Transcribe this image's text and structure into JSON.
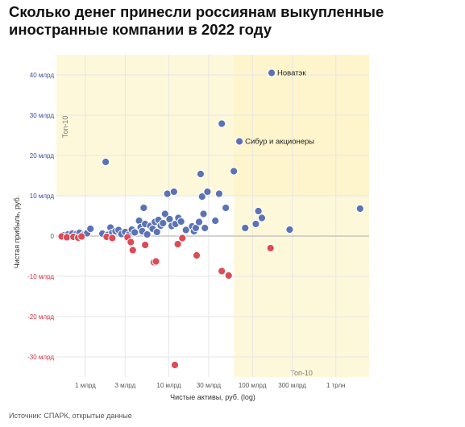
{
  "title": "Сколько денег принесли россиянам выкупленные иностранные компании в 2022 году",
  "source": "Источник: СПАРК, открытые данные",
  "chart_data": {
    "type": "scatter",
    "title": "Сколько денег принесли россиянам выкупленные иностранные компании в 2022 году",
    "xlabel": "Чистые активы, руб. (log)",
    "ylabel": "Чистая прибыль, руб.",
    "xscale": "log",
    "xlim": [
      0.45,
      2500
    ],
    "ylim": [
      -35,
      45
    ],
    "x_unit": "млрд руб.",
    "y_unit": "млрд руб.",
    "x_ticks": [
      {
        "value": 1,
        "label": "1 млрд"
      },
      {
        "value": 3,
        "label": "3 млрд"
      },
      {
        "value": 10,
        "label": "10 млрд"
      },
      {
        "value": 30,
        "label": "30 млрд"
      },
      {
        "value": 100,
        "label": "100 млрд"
      },
      {
        "value": 300,
        "label": "300 млрд"
      },
      {
        "value": 1000,
        "label": "1 трлн"
      }
    ],
    "y_ticks": [
      {
        "value": 40,
        "label": "40 млрд"
      },
      {
        "value": 30,
        "label": "30 млрд"
      },
      {
        "value": 20,
        "label": "20 млрд"
      },
      {
        "value": 10,
        "label": "10 млрд"
      },
      {
        "value": 0,
        "label": "0"
      },
      {
        "value": -10,
        "label": "-10 млрд"
      },
      {
        "value": -20,
        "label": "-20 млрд"
      },
      {
        "value": -30,
        "label": "-30 млрд"
      }
    ],
    "grid": true,
    "colors": {
      "profit": "#5b73b4",
      "loss": "#dd4b57",
      "highlight": "#fdf3c3",
      "grid": "#e6e6e6",
      "zero_line": "#bbbbbb",
      "pos_tick": "#3d4f8f",
      "neg_tick": "#c8323f"
    },
    "highlight_regions": [
      {
        "label": "Топ-10",
        "x_from": 0.45,
        "x_to": 2500,
        "y_from": 10,
        "y_to": 45,
        "label_position": "left"
      },
      {
        "label": "Топ-10",
        "x_from": 60,
        "x_to": 2500,
        "y_from": -35,
        "y_to": 45,
        "label_position": "bottom"
      }
    ],
    "annotations": [
      {
        "text": "Новатэк",
        "x": 170,
        "y": 40.5
      },
      {
        "text": "Сибур и акционеры",
        "x": 70,
        "y": 23.5
      }
    ],
    "series": [
      {
        "key": "profit",
        "points": [
          {
            "x": 0.55,
            "y": 0.2
          },
          {
            "x": 0.62,
            "y": 0.4
          },
          {
            "x": 0.7,
            "y": 0.6
          },
          {
            "x": 0.78,
            "y": 0.5
          },
          {
            "x": 0.85,
            "y": 0.8
          },
          {
            "x": 0.95,
            "y": 0.3
          },
          {
            "x": 1.05,
            "y": 0.7
          },
          {
            "x": 1.15,
            "y": 1.8
          },
          {
            "x": 1.6,
            "y": 0.6
          },
          {
            "x": 1.75,
            "y": 18.4
          },
          {
            "x": 1.85,
            "y": 0.3
          },
          {
            "x": 2.0,
            "y": 2.1
          },
          {
            "x": 2.1,
            "y": 0.8
          },
          {
            "x": 2.3,
            "y": 1.2
          },
          {
            "x": 2.5,
            "y": 1.5
          },
          {
            "x": 2.7,
            "y": 0.5
          },
          {
            "x": 3.0,
            "y": 1.0
          },
          {
            "x": 3.3,
            "y": 0.3
          },
          {
            "x": 3.6,
            "y": 1.6
          },
          {
            "x": 3.9,
            "y": 0.9
          },
          {
            "x": 4.4,
            "y": 3.8
          },
          {
            "x": 4.6,
            "y": 2.2
          },
          {
            "x": 4.8,
            "y": 1.2
          },
          {
            "x": 5.0,
            "y": 7.0
          },
          {
            "x": 5.2,
            "y": 3.0
          },
          {
            "x": 5.5,
            "y": 0.4
          },
          {
            "x": 6.0,
            "y": 2.5
          },
          {
            "x": 6.4,
            "y": 1.8
          },
          {
            "x": 6.8,
            "y": 3.5
          },
          {
            "x": 7.2,
            "y": 1.0
          },
          {
            "x": 7.5,
            "y": 4.0
          },
          {
            "x": 8.0,
            "y": 2.6
          },
          {
            "x": 8.5,
            "y": 3.2
          },
          {
            "x": 9.0,
            "y": 5.5
          },
          {
            "x": 9.6,
            "y": 10.5
          },
          {
            "x": 10.2,
            "y": 4.2
          },
          {
            "x": 10.8,
            "y": 2.5
          },
          {
            "x": 11.5,
            "y": 11.0
          },
          {
            "x": 12.0,
            "y": 3.0
          },
          {
            "x": 13.0,
            "y": 4.5
          },
          {
            "x": 14.0,
            "y": 3.6
          },
          {
            "x": 16.0,
            "y": 1.5
          },
          {
            "x": 19.0,
            "y": 2.4
          },
          {
            "x": 20.0,
            "y": 1.2
          },
          {
            "x": 21.0,
            "y": 2.0
          },
          {
            "x": 23.0,
            "y": 3.5
          },
          {
            "x": 24.0,
            "y": 15.4
          },
          {
            "x": 25.0,
            "y": 9.8
          },
          {
            "x": 26.0,
            "y": 5.5
          },
          {
            "x": 27.0,
            "y": 2.0
          },
          {
            "x": 29.0,
            "y": 11.0
          },
          {
            "x": 36.0,
            "y": 3.8
          },
          {
            "x": 40.0,
            "y": 10.5
          },
          {
            "x": 43.0,
            "y": 27.9
          },
          {
            "x": 48.0,
            "y": 7.0
          },
          {
            "x": 60.0,
            "y": 16.1
          },
          {
            "x": 70.0,
            "y": 23.5
          },
          {
            "x": 82.0,
            "y": 2.0
          },
          {
            "x": 110.0,
            "y": 3.0
          },
          {
            "x": 118.0,
            "y": 6.2
          },
          {
            "x": 130.0,
            "y": 4.5
          },
          {
            "x": 170.0,
            "y": 40.5
          },
          {
            "x": 280.0,
            "y": 1.6
          },
          {
            "x": 1950.0,
            "y": 6.8
          }
        ]
      },
      {
        "key": "loss",
        "points": [
          {
            "x": 0.52,
            "y": -0.1
          },
          {
            "x": 0.6,
            "y": -0.3
          },
          {
            "x": 0.72,
            "y": -0.2
          },
          {
            "x": 0.82,
            "y": -0.4
          },
          {
            "x": 0.9,
            "y": -0.1
          },
          {
            "x": 1.8,
            "y": -0.2
          },
          {
            "x": 2.1,
            "y": -0.5
          },
          {
            "x": 3.2,
            "y": -0.3
          },
          {
            "x": 3.5,
            "y": -1.5
          },
          {
            "x": 3.7,
            "y": -3.5
          },
          {
            "x": 5.2,
            "y": -2.2
          },
          {
            "x": 6.6,
            "y": -6.5
          },
          {
            "x": 7.0,
            "y": -6.3
          },
          {
            "x": 11.8,
            "y": -32.0
          },
          {
            "x": 12.8,
            "y": -2.0
          },
          {
            "x": 14.5,
            "y": -0.5
          },
          {
            "x": 21.5,
            "y": -4.8
          },
          {
            "x": 43.0,
            "y": -8.7
          },
          {
            "x": 52.0,
            "y": -9.8
          },
          {
            "x": 165.0,
            "y": -3.0
          }
        ]
      }
    ]
  }
}
